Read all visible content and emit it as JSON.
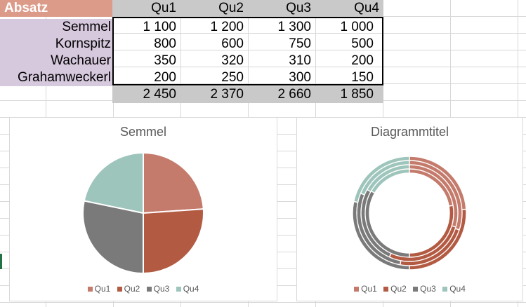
{
  "sheet": {
    "title": "Absatz",
    "quarters": [
      "Qu1",
      "Qu2",
      "Qu3",
      "Qu4"
    ],
    "rows": [
      {
        "label": "Semmel",
        "values": [
          "1 100",
          "1 200",
          "1 300",
          "1 000"
        ]
      },
      {
        "label": "Kornspitz",
        "values": [
          "800",
          "600",
          "750",
          "500"
        ]
      },
      {
        "label": "Wachauer",
        "values": [
          "350",
          "320",
          "310",
          "200"
        ]
      },
      {
        "label": "Grahamweckerl",
        "values": [
          "200",
          "250",
          "300",
          "150"
        ]
      }
    ],
    "totals": [
      "2 450",
      "2 370",
      "2 660",
      "1 850"
    ]
  },
  "colors": {
    "Qu1": "#c47b6c",
    "Qu2": "#b35a43",
    "Qu3": "#7a7a7a",
    "Qu4": "#9ec5bb"
  },
  "chart_data": [
    {
      "type": "pie",
      "title": "Semmel",
      "categories": [
        "Qu1",
        "Qu2",
        "Qu3",
        "Qu4"
      ],
      "values": [
        1100,
        1200,
        1300,
        1000
      ],
      "legend": "bottom"
    },
    {
      "type": "donut",
      "title": "Diagrammtitel",
      "categories": [
        "Qu1",
        "Qu2",
        "Qu3",
        "Qu4"
      ],
      "series": [
        {
          "values": [
            1100,
            1200,
            1300,
            1000
          ]
        },
        {
          "values": [
            800,
            600,
            750,
            500
          ]
        },
        {
          "values": [
            350,
            320,
            310,
            200
          ]
        },
        {
          "values": [
            200,
            250,
            300,
            150
          ]
        }
      ],
      "legend": "bottom"
    }
  ]
}
